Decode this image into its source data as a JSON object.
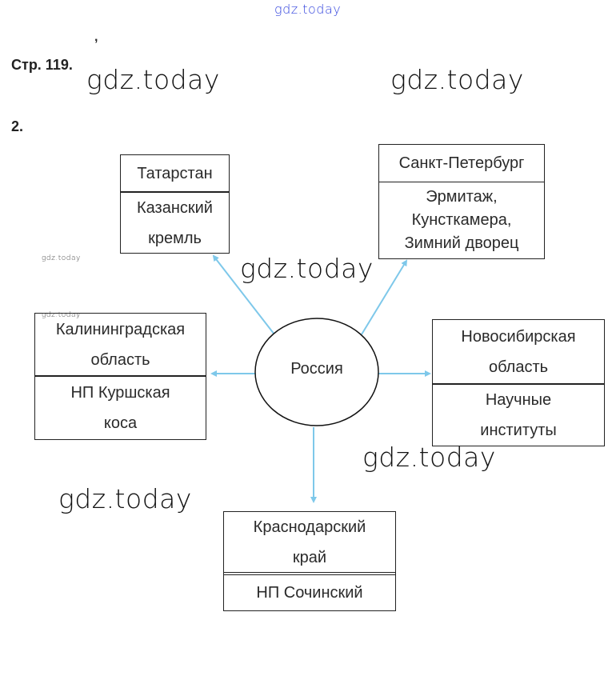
{
  "header": {
    "page_label": "Стр. 119.",
    "task_number": "2.",
    "stray_mark": ","
  },
  "watermarks": {
    "top": "gdz.today",
    "big": "gdz.today",
    "small": "gdz.today"
  },
  "diagram": {
    "center": "Россия",
    "edge_color": "#7ec8ea",
    "nodes": [
      {
        "region": [
          "Татарстан"
        ],
        "sight": [
          "Казанский",
          "кремль"
        ]
      },
      {
        "region": [
          "Санкт-Петербург"
        ],
        "sight": [
          "Эрмитаж,",
          "Кунсткамера,",
          "Зимний дворец"
        ]
      },
      {
        "region": [
          "Калининградская",
          "область"
        ],
        "sight": [
          "НП Куршская",
          "коса"
        ]
      },
      {
        "region": [
          "Новосибирская",
          "область"
        ],
        "sight": [
          "Научные",
          "институты"
        ]
      },
      {
        "region": [
          "Краснодарский",
          "край"
        ],
        "sight": [
          "НП Сочинский"
        ]
      }
    ]
  }
}
